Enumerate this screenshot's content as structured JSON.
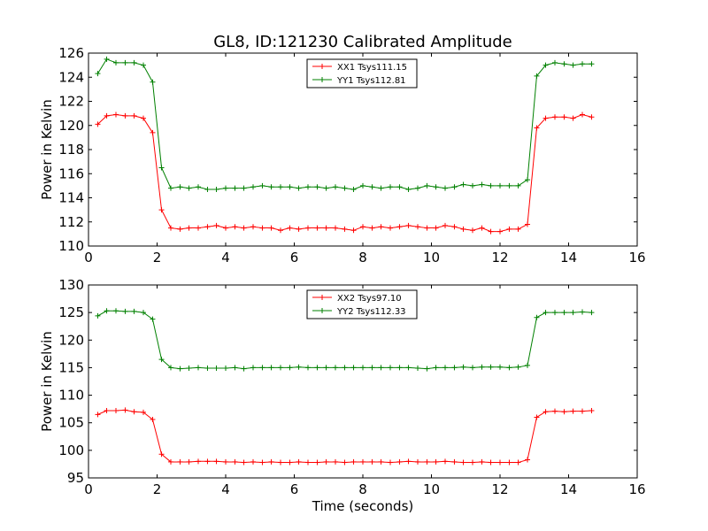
{
  "title": "GL8, ID:121230 Calibrated Amplitude",
  "chart_data": [
    {
      "type": "line",
      "title": "GL8, ID:121230 Calibrated Amplitude",
      "xlabel": "",
      "ylabel": "Power in Kelvin",
      "xlim": [
        0,
        16
      ],
      "ylim": [
        110,
        126
      ],
      "xticks": [
        0,
        2,
        4,
        6,
        8,
        10,
        12,
        14,
        16
      ],
      "yticks": [
        110,
        112,
        114,
        116,
        118,
        120,
        122,
        124,
        126
      ],
      "grid": false,
      "legend": "top-center",
      "x": [
        0.27,
        0.53,
        0.8,
        1.07,
        1.33,
        1.6,
        1.87,
        2.13,
        2.4,
        2.67,
        2.93,
        3.2,
        3.47,
        3.73,
        4.0,
        4.27,
        4.53,
        4.8,
        5.07,
        5.33,
        5.6,
        5.87,
        6.13,
        6.4,
        6.67,
        6.93,
        7.2,
        7.47,
        7.73,
        8.0,
        8.27,
        8.53,
        8.8,
        9.07,
        9.33,
        9.6,
        9.87,
        10.13,
        10.4,
        10.67,
        10.93,
        11.2,
        11.47,
        11.73,
        12.0,
        12.27,
        12.53,
        12.8,
        13.07,
        13.33,
        13.6,
        13.87,
        14.13,
        14.4,
        14.67
      ],
      "series": [
        {
          "name": "XX1 Tsys111.15",
          "color": "#ff0000",
          "values": [
            120.1,
            120.8,
            120.9,
            120.8,
            120.8,
            120.6,
            119.4,
            113.0,
            111.5,
            111.4,
            111.5,
            111.5,
            111.6,
            111.7,
            111.5,
            111.6,
            111.5,
            111.6,
            111.5,
            111.5,
            111.3,
            111.5,
            111.4,
            111.5,
            111.5,
            111.5,
            111.5,
            111.4,
            111.3,
            111.6,
            111.5,
            111.6,
            111.5,
            111.6,
            111.7,
            111.6,
            111.5,
            111.5,
            111.7,
            111.6,
            111.4,
            111.3,
            111.5,
            111.2,
            111.2,
            111.4,
            111.4,
            111.8,
            119.8,
            120.6,
            120.7,
            120.7,
            120.6,
            120.9,
            120.7
          ]
        },
        {
          "name": "YY1 Tsys112.81",
          "color": "#008000",
          "values": [
            124.3,
            125.5,
            125.2,
            125.2,
            125.2,
            125.0,
            123.6,
            116.5,
            114.8,
            114.9,
            114.8,
            114.9,
            114.7,
            114.7,
            114.8,
            114.8,
            114.8,
            114.9,
            115.0,
            114.9,
            114.9,
            114.9,
            114.8,
            114.9,
            114.9,
            114.8,
            114.9,
            114.8,
            114.7,
            115.0,
            114.9,
            114.8,
            114.9,
            114.9,
            114.7,
            114.8,
            115.0,
            114.9,
            114.8,
            114.9,
            115.1,
            115.0,
            115.1,
            115.0,
            115.0,
            115.0,
            115.0,
            115.5,
            124.1,
            125.0,
            125.2,
            125.1,
            125.0,
            125.1,
            125.1
          ]
        }
      ]
    },
    {
      "type": "line",
      "title": "",
      "xlabel": "Time (seconds)",
      "ylabel": "Power in Kelvin",
      "xlim": [
        0,
        16
      ],
      "ylim": [
        95,
        130
      ],
      "xticks": [
        0,
        2,
        4,
        6,
        8,
        10,
        12,
        14,
        16
      ],
      "yticks": [
        95,
        100,
        105,
        110,
        115,
        120,
        125,
        130
      ],
      "grid": false,
      "legend": "top-center",
      "x": [
        0.27,
        0.53,
        0.8,
        1.07,
        1.33,
        1.6,
        1.87,
        2.13,
        2.4,
        2.67,
        2.93,
        3.2,
        3.47,
        3.73,
        4.0,
        4.27,
        4.53,
        4.8,
        5.07,
        5.33,
        5.6,
        5.87,
        6.13,
        6.4,
        6.67,
        6.93,
        7.2,
        7.47,
        7.73,
        8.0,
        8.27,
        8.53,
        8.8,
        9.07,
        9.33,
        9.6,
        9.87,
        10.13,
        10.4,
        10.67,
        10.93,
        11.2,
        11.47,
        11.73,
        12.0,
        12.27,
        12.53,
        12.8,
        13.07,
        13.33,
        13.6,
        13.87,
        14.13,
        14.4,
        14.67
      ],
      "series": [
        {
          "name": "XX2 Tsys97.10",
          "color": "#ff0000",
          "values": [
            106.5,
            107.2,
            107.2,
            107.3,
            107.0,
            106.9,
            105.6,
            99.3,
            97.9,
            97.9,
            97.9,
            98.0,
            98.0,
            98.0,
            97.9,
            97.9,
            97.8,
            97.9,
            97.8,
            97.9,
            97.8,
            97.8,
            97.9,
            97.8,
            97.8,
            97.9,
            97.9,
            97.8,
            97.9,
            97.9,
            97.9,
            97.9,
            97.8,
            97.9,
            98.0,
            97.9,
            97.9,
            97.9,
            98.0,
            97.9,
            97.8,
            97.8,
            97.9,
            97.8,
            97.8,
            97.8,
            97.8,
            98.3,
            106.0,
            107.0,
            107.1,
            107.0,
            107.1,
            107.1,
            107.2
          ]
        },
        {
          "name": "YY2 Tsys112.33",
          "color": "#008000",
          "values": [
            124.4,
            125.3,
            125.3,
            125.2,
            125.2,
            125.0,
            123.8,
            116.5,
            115.0,
            114.8,
            114.9,
            115.0,
            114.9,
            114.9,
            114.9,
            115.0,
            114.8,
            115.0,
            115.0,
            115.0,
            115.0,
            115.0,
            115.1,
            115.0,
            115.0,
            115.0,
            115.0,
            115.0,
            115.0,
            115.0,
            115.0,
            115.0,
            115.0,
            115.0,
            115.0,
            114.9,
            114.8,
            115.0,
            115.0,
            115.0,
            115.1,
            115.0,
            115.1,
            115.1,
            115.1,
            115.0,
            115.1,
            115.4,
            124.1,
            125.0,
            125.0,
            125.0,
            125.0,
            125.1,
            125.0
          ]
        }
      ]
    }
  ]
}
